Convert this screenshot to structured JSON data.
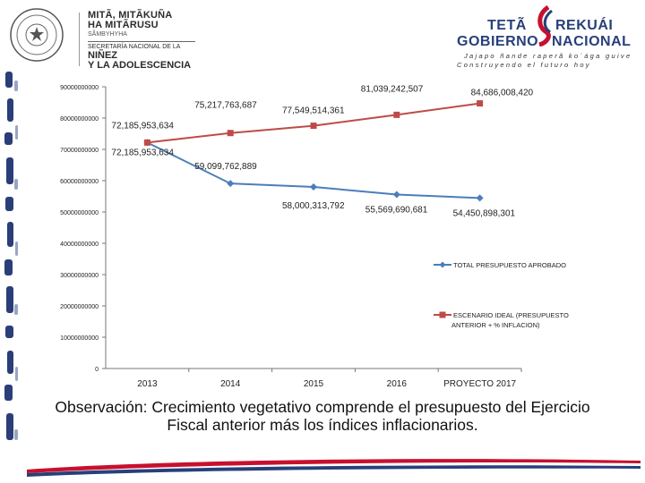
{
  "header": {
    "ministry_line1": "MITÃ, MITÃKUÑA",
    "ministry_line2": "HA MITÃRUSU",
    "ministry_line3": "SÃMBYHYHA",
    "ministry_line4": "SECRETARÍA NACIONAL DE LA",
    "ministry_line5": "NIÑEZ",
    "ministry_line6": "Y LA ADOLESCENCIA",
    "gov_line1_a": "TETÃ",
    "gov_line1_b": "REKUÁI",
    "gov_line2_a": "GOBIERNO",
    "gov_line2_b": "NACIONAL",
    "gov_slogan1": "Jajapo ñande raperã ko´ága guive",
    "gov_slogan2": "Construyendo el futuro hoy"
  },
  "chart_data": {
    "type": "line",
    "categories": [
      "2013",
      "2014",
      "2015",
      "2016",
      "PROYECTO 2017"
    ],
    "ylim": [
      0,
      90000000000
    ],
    "yticks": [
      0,
      10000000000,
      20000000000,
      30000000000,
      40000000000,
      50000000000,
      60000000000,
      70000000000,
      80000000000,
      90000000000
    ],
    "ytick_labels": [
      "0",
      "10000000000",
      "20000000000",
      "30000000000",
      "40000000000",
      "50000000000",
      "60000000000",
      "70000000000",
      "80000000000",
      "90000000000"
    ],
    "series": [
      {
        "name": "TOTAL PRESUPUESTO APROBADO",
        "color": "#4a7ebb",
        "marker": "diamond",
        "values": [
          72185953634,
          59099762889,
          58000313792,
          55569690681,
          54450898301
        ],
        "labels": [
          "72,185,953,634",
          "59,099,762,889",
          "58,000,313,792",
          "55,569,690,681",
          "54,450,898,301"
        ]
      },
      {
        "name": "ESCENARIO IDEAL (PRESUPUESTO ANTERIOR + % INFLACION)",
        "legend_line1": "ESCENARIO IDEAL (PRESUPUESTO",
        "legend_line2": "ANTERIOR + % INFLACION)",
        "color": "#be4b48",
        "marker": "square",
        "values": [
          72185953634,
          75217763687,
          77549514361,
          81039242507,
          84686008420
        ],
        "labels": [
          "72,185,953,634",
          "75,217,763,687",
          "77,549,514,361",
          "81,039,242,507",
          "84,686,008,420"
        ]
      }
    ],
    "grid": false
  },
  "note": {
    "text": "Observación: Crecimiento vegetativo comprende el presupuesto del Ejercicio Fiscal anterior más los índices inflacionarios."
  },
  "colors": {
    "brand_blue": "#27407a",
    "brand_red": "#c8102e"
  }
}
